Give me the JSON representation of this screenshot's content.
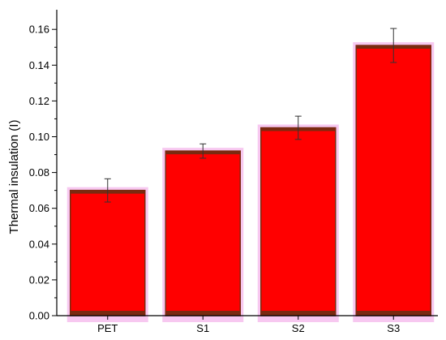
{
  "chart_data": {
    "type": "bar",
    "title": "",
    "xlabel": "",
    "ylabel": "Thermal insulation (I)",
    "categories": [
      "PET",
      "S1",
      "S2",
      "S3"
    ],
    "values": [
      0.07,
      0.092,
      0.105,
      0.151
    ],
    "errors": [
      0.0065,
      0.004,
      0.0065,
      0.0095
    ],
    "ylim": [
      0,
      0.17
    ],
    "yticks": [
      0.0,
      0.02,
      0.04,
      0.06,
      0.08,
      0.1,
      0.12,
      0.14,
      0.16
    ],
    "ytick_labels": [
      "0.00",
      "0.02",
      "0.04",
      "0.06",
      "0.08",
      "0.10",
      "0.12",
      "0.14",
      "0.16"
    ],
    "grid": false,
    "legend": "none",
    "colors": {
      "bar_fill": "#ff0000",
      "bar_edge": "#7a2a10",
      "bar_halo": "#f7c8f0",
      "axis": "#000000"
    }
  }
}
